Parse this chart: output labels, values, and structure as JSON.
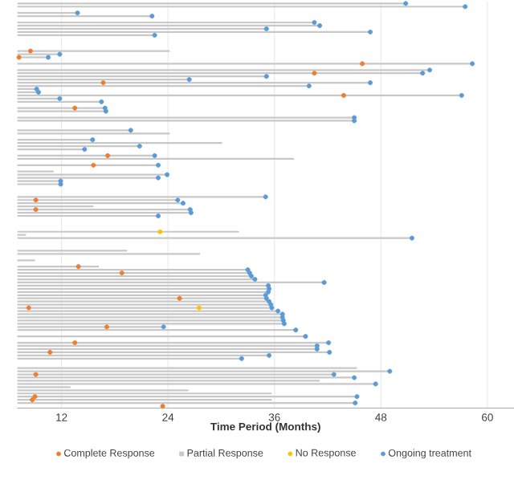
{
  "chart_data": {
    "type": "bar",
    "orientation": "horizontal",
    "xlabel": "Time Period (Months)",
    "xlim": [
      7,
      63
    ],
    "xticks": [
      12,
      24,
      36,
      48,
      60
    ],
    "grid": "x",
    "legend": "bottom",
    "tick_labels": "x",
    "categories": [
      null,
      null,
      null,
      null,
      null,
      null,
      null,
      null,
      null,
      null,
      null,
      null,
      null,
      null,
      null,
      null,
      null,
      null,
      null,
      null,
      null,
      null,
      null,
      null,
      null,
      null,
      null,
      null,
      null,
      null,
      null,
      null,
      null,
      null,
      null,
      null,
      null,
      null,
      null,
      null,
      null,
      null,
      null,
      null,
      null,
      null,
      null,
      null,
      null,
      null,
      null,
      null,
      null,
      null,
      null,
      null,
      null,
      null,
      null,
      null,
      null,
      null,
      null,
      null,
      null,
      null,
      null,
      null,
      null,
      null,
      null,
      null,
      null,
      null,
      null,
      null,
      null,
      null,
      null,
      null,
      null,
      null,
      null,
      null,
      null,
      null,
      null,
      null,
      null,
      null,
      null,
      null,
      null,
      null,
      null,
      null,
      null,
      null,
      null,
      null,
      null,
      null,
      null,
      null,
      null,
      null,
      null,
      null,
      null,
      null,
      null,
      null,
      null,
      null,
      null,
      null,
      null,
      null,
      null,
      null,
      null,
      null,
      null,
      null,
      null,
      null,
      null,
      null
    ],
    "series": [
      {
        "name": "Complete Response",
        "type": "scatter",
        "color": "#ed7d31",
        "values": [
          null,
          null,
          null,
          null,
          null,
          null,
          null,
          null,
          null,
          null,
          null,
          null,
          null,
          null,
          null,
          8.5,
          null,
          7.2,
          null,
          45.9,
          null,
          null,
          40.5,
          null,
          null,
          16.7,
          null,
          null,
          null,
          43.8,
          null,
          null,
          null,
          13.5,
          null,
          null,
          null,
          null,
          null,
          null,
          null,
          null,
          null,
          null,
          null,
          null,
          null,
          null,
          17.2,
          null,
          null,
          15.6,
          null,
          null,
          null,
          null,
          null,
          null,
          null,
          null,
          null,
          null,
          9.1,
          null,
          null,
          9.1,
          null,
          null,
          null,
          null,
          null,
          null,
          null,
          null,
          null,
          null,
          null,
          null,
          null,
          null,
          null,
          null,
          null,
          13.9,
          null,
          18.8,
          null,
          null,
          null,
          null,
          null,
          null,
          null,
          25.3,
          null,
          null,
          8.3,
          null,
          null,
          null,
          null,
          null,
          17.1,
          null,
          null,
          null,
          null,
          13.5,
          null,
          null,
          10.7,
          null,
          null,
          null,
          null,
          null,
          null,
          9.1,
          null,
          null,
          null,
          null,
          null,
          null,
          9.0,
          8.7,
          null,
          23.4
        ]
      },
      {
        "name": "Partial Response",
        "type": "bar",
        "color": "#c8c8c8",
        "values": [
          50.8,
          57.5,
          null,
          13.8,
          22.2,
          null,
          40.5,
          41.1,
          35.1,
          46.8,
          22.5,
          null,
          null,
          null,
          null,
          24.2,
          11.8,
          10.5,
          null,
          58.3,
          null,
          53.5,
          52.7,
          35.1,
          26.4,
          46.8,
          39.9,
          9.2,
          9.4,
          57.1,
          11.8,
          16.5,
          null,
          16.9,
          17.0,
          null,
          45.0,
          45.0,
          null,
          null,
          19.8,
          24.2,
          null,
          15.5,
          30.1,
          20.8,
          14.6,
          null,
          22.5,
          38.2,
          null,
          22.9,
          null,
          11.1,
          23.9,
          22.9,
          11.9,
          11.9,
          null,
          null,
          null,
          35.0,
          25.1,
          25.7,
          15.6,
          26.5,
          26.6,
          22.9,
          null,
          null,
          null,
          null,
          32.0,
          8.0,
          51.5,
          null,
          null,
          null,
          19.4,
          27.6,
          null,
          9.0,
          null,
          16.2,
          33.0,
          33.2,
          33.4,
          33.8,
          41.6,
          35.3,
          35.4,
          35.3,
          35.0,
          35.1,
          35.4,
          35.6,
          35.7,
          36.4,
          36.9,
          36.9,
          37.0,
          37.1,
          23.5,
          38.4,
          null,
          39.5,
          null,
          42.1,
          40.8,
          40.8,
          42.2,
          35.4,
          32.3,
          null,
          null,
          45.3,
          49.0,
          42.7,
          45.0,
          41.1,
          47.4,
          13.0,
          26.3,
          35.7,
          45.3,
          35.7,
          45.1,
          null
        ]
      },
      {
        "name": "No Response",
        "type": "scatter",
        "color": "#ffc000",
        "values": [
          null,
          null,
          null,
          null,
          null,
          null,
          null,
          null,
          null,
          null,
          null,
          null,
          null,
          null,
          null,
          null,
          null,
          null,
          null,
          null,
          null,
          null,
          null,
          null,
          null,
          null,
          null,
          null,
          null,
          null,
          null,
          null,
          null,
          null,
          null,
          null,
          null,
          null,
          null,
          null,
          null,
          null,
          null,
          null,
          null,
          null,
          null,
          null,
          null,
          null,
          null,
          null,
          null,
          null,
          null,
          null,
          null,
          null,
          null,
          null,
          null,
          null,
          null,
          null,
          null,
          null,
          null,
          null,
          null,
          null,
          null,
          null,
          23.1,
          null,
          null,
          null,
          null,
          null,
          null,
          null,
          null,
          null,
          null,
          null,
          null,
          null,
          null,
          null,
          null,
          null,
          null,
          null,
          null,
          null,
          null,
          null,
          27.5,
          null,
          null,
          null,
          null,
          null,
          null,
          null,
          null,
          null,
          null,
          null,
          null,
          null,
          null,
          null,
          null,
          null,
          null,
          null,
          null,
          null,
          null,
          null,
          null,
          null,
          null,
          null,
          null,
          null,
          null,
          null
        ]
      },
      {
        "name": "Ongoing treatment",
        "type": "scatter",
        "color": "#5b9bd5",
        "values": [
          50.8,
          57.5,
          null,
          13.8,
          22.2,
          null,
          40.5,
          41.1,
          35.1,
          46.8,
          22.5,
          null,
          null,
          null,
          null,
          null,
          11.8,
          10.5,
          null,
          58.3,
          null,
          53.5,
          52.7,
          35.1,
          26.4,
          46.8,
          39.9,
          9.2,
          9.4,
          57.1,
          11.8,
          16.5,
          null,
          16.9,
          17.0,
          null,
          45.0,
          45.0,
          null,
          null,
          19.8,
          null,
          null,
          15.5,
          null,
          20.8,
          14.6,
          null,
          22.5,
          null,
          null,
          22.9,
          null,
          null,
          23.9,
          22.9,
          11.9,
          11.9,
          null,
          null,
          null,
          35.0,
          25.1,
          25.7,
          null,
          26.5,
          26.6,
          22.9,
          null,
          null,
          null,
          null,
          null,
          null,
          51.5,
          null,
          null,
          null,
          null,
          null,
          null,
          null,
          null,
          null,
          33.0,
          33.2,
          33.4,
          33.8,
          41.6,
          35.3,
          35.4,
          35.3,
          35.0,
          35.1,
          35.4,
          35.6,
          35.7,
          36.4,
          36.9,
          36.9,
          37.0,
          37.1,
          23.5,
          38.4,
          null,
          39.5,
          null,
          42.1,
          40.8,
          40.8,
          42.2,
          35.4,
          32.3,
          null,
          null,
          null,
          49.0,
          42.7,
          45.0,
          null,
          47.4,
          null,
          null,
          null,
          45.3,
          null,
          45.1,
          null
        ]
      }
    ]
  }
}
